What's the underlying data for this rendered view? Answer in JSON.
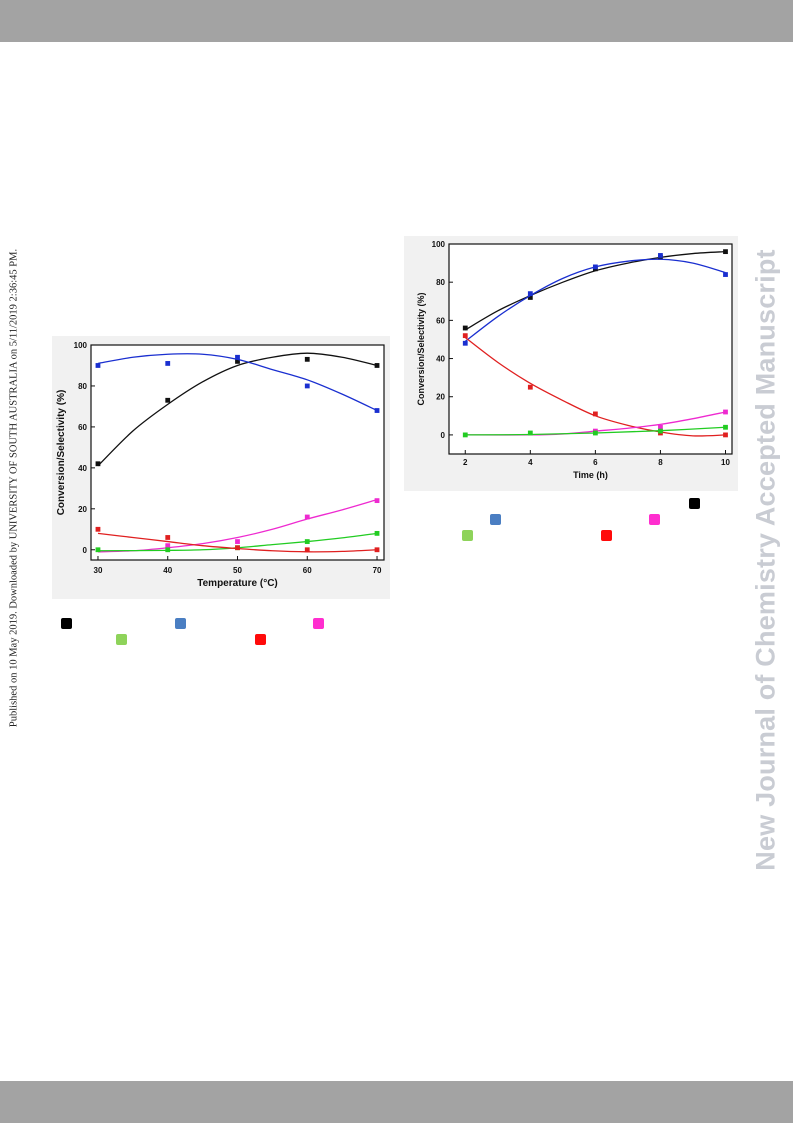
{
  "sidebar_note": "Published on 10 May 2019. Downloaded by UNIVERSITY OF SOUTH AUSTRALIA on 5/11/2019 2:36:45 PM.",
  "watermark": "New Journal of Chemistry Accepted Manuscript",
  "chart_data": [
    {
      "type": "scatter",
      "title": "",
      "xlabel": "Temperature (°C)",
      "ylabel": "Conversion/Selectivity (%)",
      "xlim": [
        29,
        71
      ],
      "ylim": [
        -5,
        100
      ],
      "xticks": [
        30,
        40,
        50,
        60,
        70
      ],
      "yticks": [
        0,
        20,
        40,
        60,
        80,
        100
      ],
      "grid": false,
      "series": [
        {
          "color": "#111111",
          "x": [
            30,
            40,
            50,
            60,
            70
          ],
          "y": [
            42,
            73,
            92,
            93,
            90
          ],
          "fit": [
            [
              30,
              41
            ],
            [
              35,
              58
            ],
            [
              40,
              71
            ],
            [
              45,
              82
            ],
            [
              50,
              90
            ],
            [
              55,
              94
            ],
            [
              60,
              96
            ],
            [
              65,
              94
            ],
            [
              70,
              90
            ]
          ]
        },
        {
          "color": "#1a2fd0",
          "x": [
            30,
            40,
            50,
            60,
            70
          ],
          "y": [
            90,
            91,
            94,
            80,
            68
          ],
          "fit": [
            [
              30,
              91
            ],
            [
              35,
              94
            ],
            [
              40,
              95.5
            ],
            [
              45,
              95.5
            ],
            [
              50,
              93
            ],
            [
              55,
              88
            ],
            [
              60,
              83
            ],
            [
              65,
              76
            ],
            [
              70,
              68
            ]
          ]
        },
        {
          "color": "#ee2ad0",
          "x": [
            40,
            50,
            60,
            70
          ],
          "y": [
            2,
            4,
            16,
            24
          ],
          "fit": [
            [
              30,
              -1
            ],
            [
              35,
              -0.5
            ],
            [
              40,
              1
            ],
            [
              45,
              3
            ],
            [
              50,
              6
            ],
            [
              55,
              10
            ],
            [
              60,
              15
            ],
            [
              65,
              19.5
            ],
            [
              70,
              24.5
            ]
          ]
        },
        {
          "color": "#22cc22",
          "x": [
            30,
            40,
            50,
            60,
            70
          ],
          "y": [
            0,
            0,
            1,
            4,
            8
          ],
          "fit": [
            [
              30,
              -0.5
            ],
            [
              40,
              -0.3
            ],
            [
              45,
              0
            ],
            [
              50,
              1
            ],
            [
              55,
              2.5
            ],
            [
              60,
              4
            ],
            [
              65,
              5.8
            ],
            [
              70,
              8
            ]
          ]
        },
        {
          "color": "#e02020",
          "x": [
            30,
            40,
            50,
            60,
            70
          ],
          "y": [
            10,
            6,
            1,
            0,
            0
          ],
          "fit": [
            [
              30,
              8
            ],
            [
              35,
              6
            ],
            [
              40,
              4
            ],
            [
              45,
              2
            ],
            [
              50,
              0.6
            ],
            [
              55,
              -0.5
            ],
            [
              60,
              -1
            ],
            [
              65,
              -0.8
            ],
            [
              70,
              0
            ]
          ]
        }
      ],
      "legend": {
        "placement": "below",
        "markers": [
          {
            "color": "#000000"
          },
          {
            "color": "#4a7ec2"
          },
          {
            "color": "#ff2ecf"
          },
          {
            "color": "#8ed35a"
          },
          {
            "color": "#ff0a0a"
          }
        ]
      }
    },
    {
      "type": "scatter",
      "title": "",
      "xlabel": "Time (h)",
      "ylabel": "Conversion/Selectivity (%)",
      "xlim": [
        1.5,
        10.2
      ],
      "ylim": [
        -10,
        100
      ],
      "xticks": [
        2,
        4,
        6,
        8,
        10
      ],
      "yticks": [
        0,
        20,
        40,
        60,
        80,
        100
      ],
      "grid": false,
      "series": [
        {
          "color": "#111111",
          "x": [
            2,
            4,
            6,
            8,
            10
          ],
          "y": [
            56,
            72,
            87,
            93,
            96
          ],
          "fit": [
            [
              2,
              55
            ],
            [
              3,
              65
            ],
            [
              4,
              73
            ],
            [
              5,
              80
            ],
            [
              6,
              86
            ],
            [
              7,
              90
            ],
            [
              8,
              93
            ],
            [
              9,
              95
            ],
            [
              10,
              96
            ]
          ]
        },
        {
          "color": "#1a2fd0",
          "x": [
            2,
            4,
            6,
            8,
            10
          ],
          "y": [
            48,
            74,
            88,
            94,
            84
          ],
          "fit": [
            [
              2,
              49
            ],
            [
              3,
              62
            ],
            [
              4,
              73
            ],
            [
              5,
              82
            ],
            [
              6,
              88
            ],
            [
              7,
              91
            ],
            [
              8,
              92
            ],
            [
              9,
              90
            ],
            [
              10,
              85
            ]
          ]
        },
        {
          "color": "#e02020",
          "x": [
            2,
            4,
            6,
            8,
            10
          ],
          "y": [
            52,
            25,
            11,
            1,
            0
          ],
          "fit": [
            [
              2,
              51
            ],
            [
              3,
              38
            ],
            [
              4,
              27
            ],
            [
              5,
              18
            ],
            [
              6,
              10
            ],
            [
              7,
              5
            ],
            [
              8,
              1.5
            ],
            [
              9,
              -0.5
            ],
            [
              10,
              0
            ]
          ]
        },
        {
          "color": "#ee2ad0",
          "x": [
            6,
            8,
            10
          ],
          "y": [
            2,
            4,
            12
          ],
          "fit": [
            [
              2,
              0
            ],
            [
              4,
              0
            ],
            [
              5,
              0.5
            ],
            [
              6,
              2
            ],
            [
              7,
              3.5
            ],
            [
              8,
              5.5
            ],
            [
              9,
              8.5
            ],
            [
              10,
              12
            ]
          ]
        },
        {
          "color": "#22cc22",
          "x": [
            2,
            4,
            6,
            8,
            10
          ],
          "y": [
            0,
            1,
            1,
            2,
            4
          ],
          "fit": [
            [
              2,
              0
            ],
            [
              4,
              0.2
            ],
            [
              6,
              1
            ],
            [
              8,
              2.2
            ],
            [
              10,
              4
            ]
          ]
        }
      ],
      "legend": {
        "placement": "below",
        "markers": [
          {
            "color": "#000000"
          },
          {
            "color": "#4a7ec2"
          },
          {
            "color": "#ff2ecf"
          },
          {
            "color": "#ff0a0a"
          },
          {
            "color": "#8ed35a"
          }
        ]
      }
    }
  ]
}
